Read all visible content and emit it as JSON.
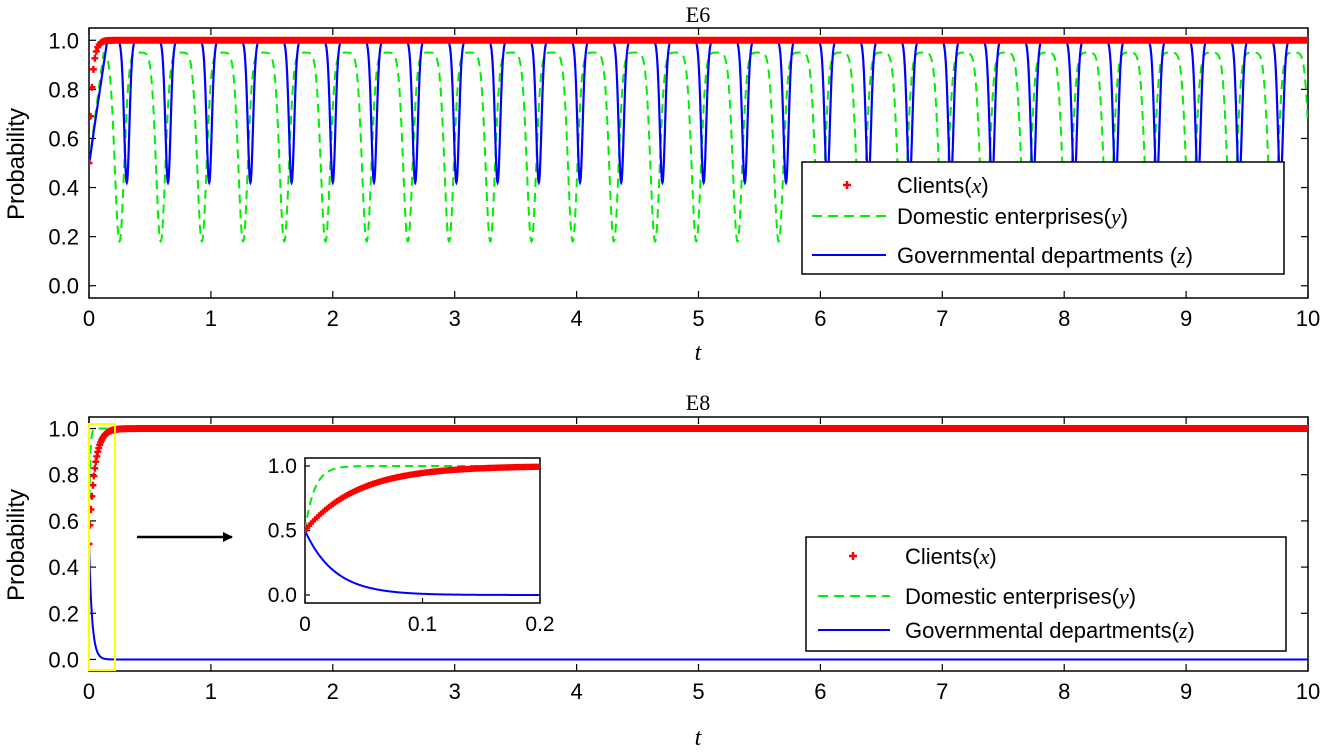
{
  "chart_data": [
    {
      "id": "E6",
      "type": "line",
      "title": "E6",
      "xlabel": "t",
      "ylabel": "Probability",
      "xlim": [
        0,
        10
      ],
      "ylim": [
        -0.05,
        1.05
      ],
      "xticks": [
        "0",
        "1",
        "2",
        "3",
        "4",
        "5",
        "6",
        "7",
        "8",
        "9",
        "10"
      ],
      "yticks": [
        "0.0",
        "0.2",
        "0.4",
        "0.6",
        "0.8",
        "1.0"
      ],
      "grid": false,
      "legend_position": "bottom-right",
      "series": [
        {
          "key": "x",
          "name": "Clients",
          "var": "x",
          "style": "plus-markers",
          "color": "#ff0000",
          "description_values": {
            "start": 0.5,
            "reaches": 1.0,
            "reach_t": 0.1
          }
        },
        {
          "key": "y",
          "name": "Domestic enterprises",
          "var": "y",
          "style": "dashed",
          "color": "#00ee00",
          "oscillation": {
            "max": 0.95,
            "min": 0.18,
            "period": 0.338,
            "first_min_t": 0.25
          }
        },
        {
          "key": "z",
          "name": "Governmental departments ",
          "var": "z",
          "style": "solid",
          "color": "#0000ff",
          "oscillation": {
            "max": 1.0,
            "min": 0.42,
            "period": 0.338,
            "first_min_t": 0.31
          }
        }
      ]
    },
    {
      "id": "E8",
      "type": "line",
      "title": "E8",
      "xlabel": "t",
      "ylabel": "Probability",
      "xlim": [
        0,
        10
      ],
      "ylim": [
        -0.05,
        1.05
      ],
      "xticks": [
        "0",
        "1",
        "2",
        "3",
        "4",
        "5",
        "6",
        "7",
        "8",
        "9",
        "10"
      ],
      "yticks": [
        "0.0",
        "0.2",
        "0.4",
        "0.6",
        "0.8",
        "1.0"
      ],
      "grid": false,
      "legend_position": "bottom-right",
      "series": [
        {
          "key": "x",
          "name": "Clients",
          "var": "x",
          "style": "plus-markers",
          "color": "#ff0000",
          "description_values": {
            "start": 0.5,
            "end": 1.0
          }
        },
        {
          "key": "y",
          "name": "Domestic enterprises",
          "var": "y",
          "style": "dashed",
          "color": "#00ee00",
          "description_values": {
            "start": 0.5,
            "end": 1.0
          }
        },
        {
          "key": "z",
          "name": "Governmental departments",
          "var": "z",
          "style": "solid",
          "color": "#0000ff",
          "description_values": {
            "start": 0.5,
            "end": 0.0
          }
        }
      ],
      "inset": {
        "xlim": [
          0,
          0.2
        ],
        "ylim": [
          0,
          1
        ],
        "xticks": [
          "0",
          "0.1",
          "0.2"
        ],
        "yticks": [
          "0.0",
          "0.5",
          "1.0"
        ],
        "zoom_box_range_t": [
          0,
          0.2
        ],
        "zoom_box_color": "#ffff00"
      }
    }
  ]
}
